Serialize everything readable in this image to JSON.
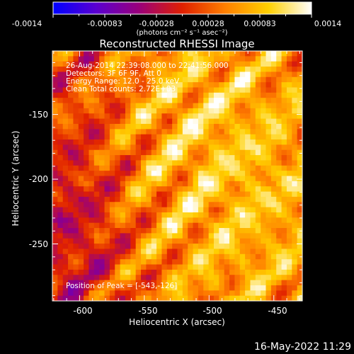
{
  "colorbar": {
    "tick_labels": [
      "-0.0014",
      "-0.00083",
      "-0.00028",
      "0.00028",
      "0.00083",
      "0.0014"
    ],
    "units_label": "(photons cm⁻² s⁻¹ asec⁻²)",
    "colormap_stops": [
      "#0000ff",
      "#5a00d0",
      "#9a007a",
      "#e02000",
      "#ff8000",
      "#ffd000",
      "#ffffff"
    ]
  },
  "image": {
    "title": "Reconstructed RHESSI Image",
    "x_label": "Heliocentric X (arcsec)",
    "y_label": "Heliocentric Y (arcsec)",
    "x_ticks": [
      "-600",
      "-550",
      "-500",
      "-450"
    ],
    "y_ticks": [
      "-150",
      "-200",
      "-250"
    ],
    "x_range": [
      -621,
      -428
    ],
    "y_range": [
      -294,
      -101
    ],
    "annotations": [
      "26-Aug-2014 22:39:08.000 to 22:41:56.000",
      "Detectors: 3F 6F 9F, Att 0",
      "Energy Range: 12.0 - 25.0 keV",
      "Clean    Total counts: 2.72E+03"
    ],
    "peak_label": "Position of Peak = [-543,-126]"
  },
  "footer": {
    "date": "16-May-2022 11:29"
  }
}
